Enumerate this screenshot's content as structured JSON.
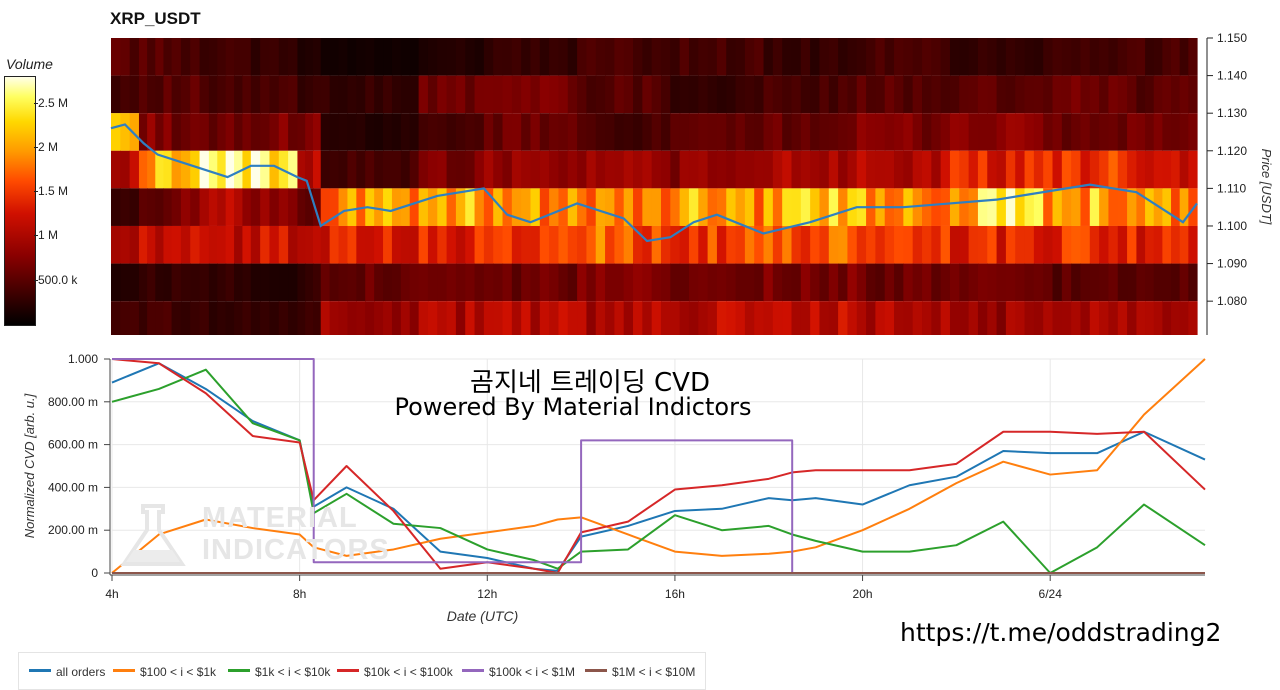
{
  "title": "XRP_USDT",
  "colorbar": {
    "title": "Volume",
    "ticks": [
      "2.5 M",
      "2 M",
      "1.5 M",
      "1 M",
      "500.0 k"
    ],
    "tick_values": [
      2.5,
      2.0,
      1.5,
      1.0,
      0.5
    ],
    "max": 2.8
  },
  "heatmap": {
    "price_axis_label": "Price [USDT]",
    "price_ticks": [
      "1.150",
      "1.140",
      "1.130",
      "1.120",
      "1.110",
      "1.100",
      "1.090",
      "1.080"
    ],
    "price_tick_values": [
      1.15,
      1.14,
      1.13,
      1.12,
      1.11,
      1.1,
      1.09,
      1.08
    ],
    "price_range": [
      1.071,
      1.15
    ]
  },
  "overlay": {
    "line1": "곰지네 트레이딩 CVD",
    "line2": "Powered By Material Indictors"
  },
  "watermark": {
    "line1": "MATERIAL",
    "line2": "INDICATORS"
  },
  "link": "https://t.me/oddstrading2",
  "cvd_chart": {
    "ylabel": "Normalized CVD [arb. u.]",
    "xlabel": "Date (UTC)",
    "yticks": [
      "1.000",
      "800.00 m",
      "600.00 m",
      "400.00 m",
      "200.00 m",
      "0"
    ],
    "ytick_values": [
      1.0,
      0.8,
      0.6,
      0.4,
      0.2,
      0.0
    ],
    "xticks": [
      "4h",
      "8h",
      "12h",
      "16h",
      "20h",
      "6/24"
    ],
    "xtick_values": [
      4,
      8,
      12,
      16,
      20,
      24
    ]
  },
  "legend": [
    {
      "label": "all orders",
      "color": "#1f77b4"
    },
    {
      "label": "$100 < i < $1k",
      "color": "#ff7f0e"
    },
    {
      "label": "$1k < i < $10k",
      "color": "#2ca02c"
    },
    {
      "label": "$10k < i < $100k",
      "color": "#d62728"
    },
    {
      "label": "$100k < i < $1M",
      "color": "#9467bd"
    },
    {
      "label": "$1M < i < $10M",
      "color": "#8c564b"
    }
  ],
  "chart_data": [
    {
      "type": "line",
      "title": "",
      "xlabel": "Date (UTC)",
      "ylabel": "Normalized CVD [arb. u.]",
      "xlim": [
        4,
        27.3
      ],
      "ylim": [
        0,
        1
      ],
      "x": [
        4,
        5,
        6,
        7,
        8,
        8.3,
        9,
        10,
        11,
        12,
        13,
        13.5,
        14,
        15,
        16,
        17,
        18,
        18.5,
        19,
        20,
        21,
        22,
        23,
        24,
        25,
        26,
        27.3
      ],
      "series": [
        {
          "name": "all orders",
          "values": [
            0.89,
            0.98,
            0.86,
            0.71,
            0.62,
            0.31,
            0.4,
            0.3,
            0.1,
            0.07,
            0.02,
            0.01,
            0.17,
            0.22,
            0.29,
            0.3,
            0.35,
            0.34,
            0.35,
            0.32,
            0.41,
            0.45,
            0.57,
            0.56,
            0.56,
            0.66,
            0.53
          ]
        },
        {
          "name": "$100 < i < $1k",
          "values": [
            0.0,
            0.18,
            0.25,
            0.21,
            0.18,
            0.12,
            0.08,
            0.11,
            0.16,
            0.19,
            0.22,
            0.25,
            0.26,
            0.18,
            0.1,
            0.08,
            0.09,
            0.1,
            0.12,
            0.2,
            0.3,
            0.42,
            0.52,
            0.46,
            0.48,
            0.74,
            1.0
          ]
        },
        {
          "name": "$1k < i < $10k",
          "values": [
            0.8,
            0.86,
            0.95,
            0.7,
            0.62,
            0.28,
            0.37,
            0.23,
            0.21,
            0.11,
            0.06,
            0.02,
            0.1,
            0.11,
            0.27,
            0.2,
            0.22,
            0.18,
            0.15,
            0.1,
            0.1,
            0.13,
            0.24,
            0.0,
            0.12,
            0.32,
            0.13
          ]
        },
        {
          "name": "$10k < i < $100k",
          "values": [
            1.0,
            0.98,
            0.84,
            0.64,
            0.61,
            0.34,
            0.5,
            0.29,
            0.02,
            0.05,
            0.02,
            0.0,
            0.19,
            0.24,
            0.39,
            0.41,
            0.44,
            0.47,
            0.48,
            0.48,
            0.48,
            0.51,
            0.66,
            0.66,
            0.65,
            0.66,
            0.39
          ]
        },
        {
          "name": "$100k < i < $1M",
          "values": [
            1.0,
            1.0,
            1.0,
            1.0,
            1.0,
            0.05,
            0.05,
            0.05,
            0.05,
            0.05,
            0.05,
            0.05,
            0.62,
            0.62,
            0.62,
            0.62,
            0.62,
            0.0,
            0.0,
            0.0,
            0.0,
            0.0,
            0.0,
            0.0,
            0.0,
            0.0,
            0.0
          ]
        },
        {
          "name": "$1M < i < $10M",
          "values": [
            0.0,
            0.0,
            0.0,
            0.0,
            0.0,
            0.0,
            0.0,
            0.0,
            0.0,
            0.0,
            0.0,
            0.0,
            0.0,
            0.0,
            0.0,
            0.0,
            0.0,
            0.0,
            0.0,
            0.0,
            0.0,
            0.0,
            0.0,
            0.0,
            0.0,
            0.0,
            0.0
          ]
        }
      ]
    },
    {
      "type": "line",
      "title": "XRP_USDT",
      "xlabel": "",
      "ylabel": "Price [USDT]",
      "xlim": [
        4,
        27.3
      ],
      "ylim": [
        1.071,
        1.15
      ],
      "x": [
        4,
        4.3,
        4.7,
        5,
        5.5,
        6,
        6.5,
        7,
        7.5,
        8,
        8.2,
        8.5,
        9,
        9.5,
        10,
        11,
        12,
        12.5,
        13,
        14,
        15,
        15.5,
        16,
        16.5,
        17,
        18,
        19,
        20,
        21,
        22,
        23,
        24,
        25,
        26,
        27,
        27.3
      ],
      "series": [
        {
          "name": "",
          "values": [
            1.126,
            1.127,
            1.122,
            1.119,
            1.117,
            1.115,
            1.113,
            1.116,
            1.116,
            1.113,
            1.112,
            1.1,
            1.104,
            1.105,
            1.104,
            1.108,
            1.11,
            1.103,
            1.101,
            1.106,
            1.102,
            1.096,
            1.097,
            1.101,
            1.103,
            1.098,
            1.101,
            1.105,
            1.105,
            1.106,
            1.107,
            1.109,
            1.111,
            1.109,
            1.101,
            1.106
          ]
        }
      ]
    },
    {
      "type": "heatmap",
      "title": "XRP_USDT",
      "ylabel": "Price [USDT]",
      "price_bins": [
        1.145,
        1.135,
        1.125,
        1.115,
        1.105,
        1.095,
        1.085,
        1.075
      ],
      "time_segments": [
        4,
        4.6,
        5.3,
        6.1,
        7.0,
        8.0,
        8.5,
        10.6,
        12.0,
        14.0,
        16.0,
        18.0,
        20.0,
        22.0,
        24.0,
        26.0,
        27.3
      ],
      "values_millions": [
        [
          0.5,
          0.5,
          0.4,
          0.4,
          0.3,
          0.2,
          0.1,
          0.2,
          0.3,
          0.4,
          0.4,
          0.3,
          0.4,
          0.3,
          0.4,
          0.4
        ],
        [
          0.4,
          0.5,
          0.5,
          0.4,
          0.4,
          0.3,
          0.3,
          0.6,
          0.7,
          0.5,
          0.3,
          0.4,
          0.5,
          0.5,
          0.6,
          0.5
        ],
        [
          2.2,
          0.8,
          0.6,
          0.6,
          0.7,
          0.7,
          0.2,
          0.4,
          0.6,
          0.4,
          0.5,
          0.6,
          0.7,
          0.8,
          0.6,
          0.6
        ],
        [
          1.0,
          2.1,
          2.5,
          2.6,
          2.7,
          1.0,
          0.4,
          0.7,
          0.9,
          0.9,
          0.8,
          1.0,
          1.1,
          1.3,
          1.5,
          1.2
        ],
        [
          0.3,
          0.6,
          0.8,
          1.0,
          0.9,
          0.5,
          1.9,
          2.1,
          2.0,
          1.9,
          2.0,
          2.2,
          2.0,
          2.3,
          2.1,
          2.0
        ],
        [
          0.9,
          1.1,
          1.2,
          1.1,
          1.2,
          1.0,
          1.3,
          1.4,
          1.6,
          1.7,
          1.5,
          1.6,
          1.5,
          1.4,
          1.5,
          1.3
        ],
        [
          0.2,
          0.3,
          0.3,
          0.3,
          0.2,
          0.3,
          0.6,
          0.7,
          0.6,
          0.7,
          0.6,
          0.7,
          0.6,
          0.6,
          0.5,
          0.5
        ],
        [
          0.4,
          0.4,
          0.3,
          0.3,
          0.3,
          0.4,
          0.9,
          1.0,
          1.1,
          1.0,
          1.1,
          1.1,
          1.0,
          0.9,
          1.0,
          0.9
        ]
      ]
    }
  ]
}
